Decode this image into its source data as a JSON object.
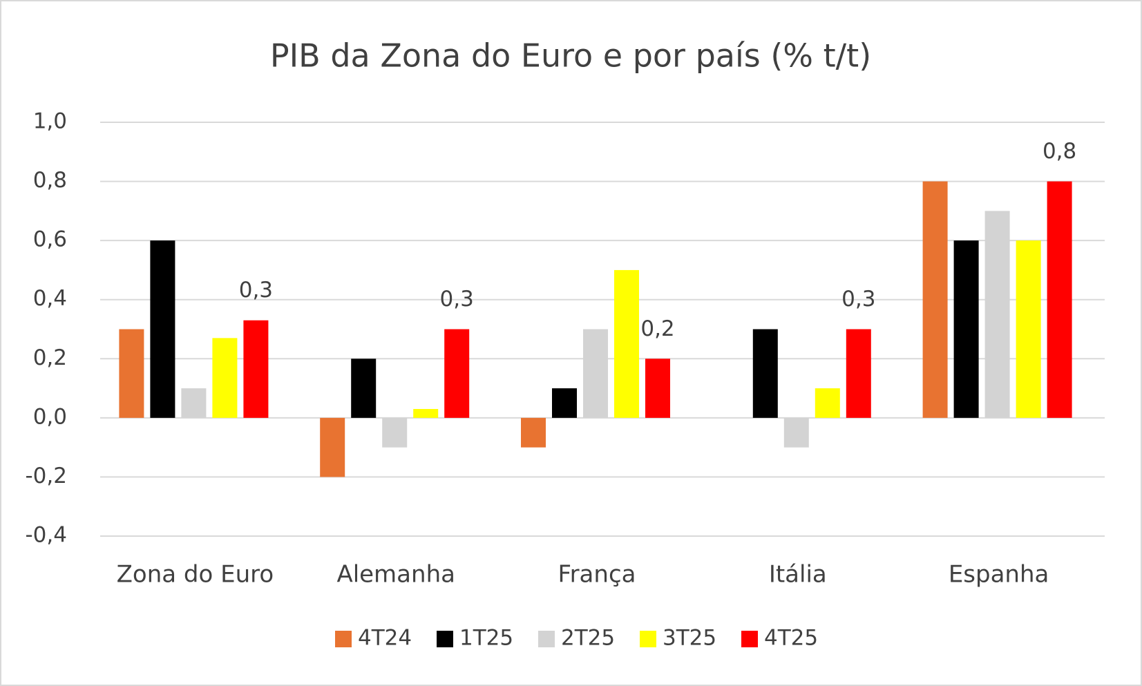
{
  "chart_data": {
    "type": "bar",
    "title": "PIB da Zona do Euro e por país (% t/t)",
    "categories": [
      "Zona do Euro",
      "Alemanha",
      "França",
      "Itália",
      "Espanha"
    ],
    "series": [
      {
        "name": "4T24",
        "color": "#e87331",
        "values": [
          0.3,
          -0.2,
          -0.1,
          0,
          0.8
        ]
      },
      {
        "name": "1T25",
        "color": "#000000",
        "values": [
          0.6,
          0.2,
          0.1,
          0.3,
          0.6
        ]
      },
      {
        "name": "2T25",
        "color": "#d3d3d3",
        "values": [
          0.1,
          -0.1,
          0.3,
          -0.1,
          0.7
        ]
      },
      {
        "name": "3T25",
        "color": "#ffff00",
        "values": [
          0.27,
          0.03,
          0.5,
          0.1,
          0.6
        ]
      },
      {
        "name": "4T25",
        "color": "#ff0000",
        "values": [
          0.33,
          0.3,
          0.2,
          0.3,
          0.8
        ],
        "value_labels": [
          "0,3",
          "0,3",
          "0,2",
          "0,3",
          "0,8"
        ]
      }
    ],
    "ylim": [
      -0.4,
      1.0
    ],
    "yticks": [
      {
        "value": -0.4,
        "label": "-0,4"
      },
      {
        "value": -0.2,
        "label": "-0,2"
      },
      {
        "value": 0,
        "label": "0,0"
      },
      {
        "value": 0.2,
        "label": "0,2"
      },
      {
        "value": 0.4,
        "label": "0,4"
      },
      {
        "value": 0.6,
        "label": "0,6"
      },
      {
        "value": 0.8,
        "label": "0,8"
      },
      {
        "value": 1.0,
        "label": "1,0"
      }
    ],
    "grid": true,
    "legend": "bottom"
  }
}
